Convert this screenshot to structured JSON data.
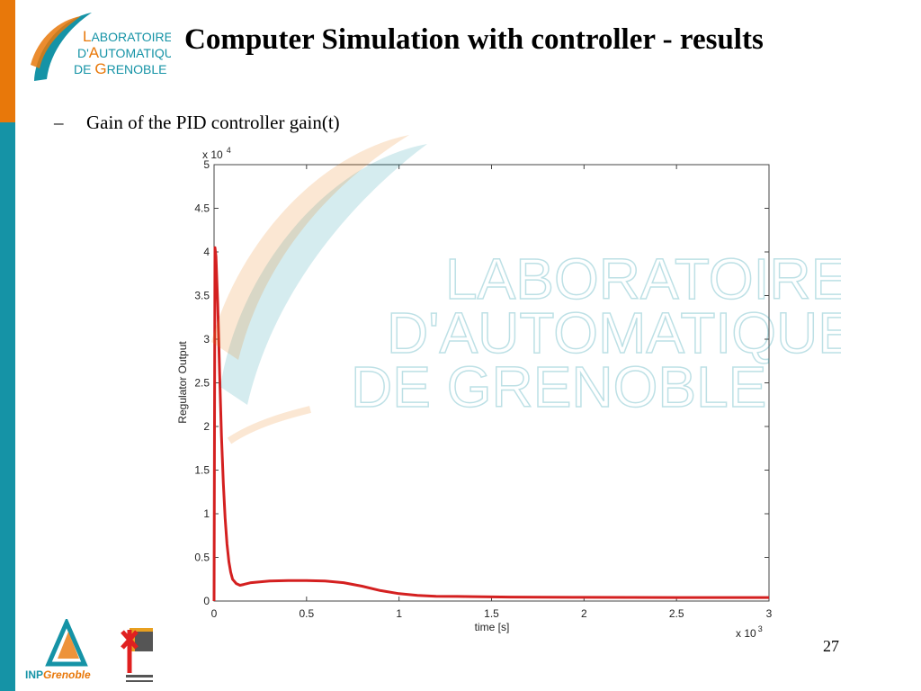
{
  "slide": {
    "title": "Computer Simulation with controller - results",
    "bullet_marker": "–",
    "bullet_text": "Gain of the PID controller gain(t)",
    "page_number": "27"
  },
  "logo": {
    "line1_cap": "L",
    "line1_rest": "ABORATOIRE",
    "line2_pre": "D'",
    "line2_cap": "A",
    "line2_rest": "UTOMATIQUE",
    "line3_pre": "DE ",
    "line3_cap": "G",
    "line3_rest": "RENOBLE"
  },
  "bottom_logo": {
    "text1": "INP",
    "text2": "Grenoble"
  },
  "colors": {
    "orange": "#e8780a",
    "teal": "#1593a6",
    "series": "#d42020"
  },
  "chart_data": {
    "type": "line",
    "title": "",
    "xlabel": "time [s]",
    "ylabel": "Regulator Output",
    "x_multiplier": "x 10",
    "x_multiplier_exp": "3",
    "y_multiplier": "x 10",
    "y_multiplier_exp": "4",
    "xlim": [
      0,
      3
    ],
    "ylim": [
      0,
      5
    ],
    "xticks": [
      0,
      0.5,
      1,
      1.5,
      2,
      2.5,
      3
    ],
    "xtick_labels": [
      "0",
      "0.5",
      "1",
      "1.5",
      "2",
      "2.5",
      "3"
    ],
    "yticks": [
      0,
      0.5,
      1,
      1.5,
      2,
      2.5,
      3,
      3.5,
      4,
      4.5,
      5
    ],
    "ytick_labels": [
      "0",
      "0.5",
      "1",
      "1.5",
      "2",
      "2.5",
      "3",
      "3.5",
      "4",
      "4.5",
      "5"
    ],
    "grid": false,
    "series": [
      {
        "x": [
          0,
          0.005,
          0.01,
          0.02,
          0.03,
          0.04,
          0.05,
          0.06,
          0.07,
          0.08,
          0.09,
          0.1,
          0.12,
          0.14,
          0.16,
          0.2,
          0.3,
          0.4,
          0.5,
          0.6,
          0.7,
          0.8,
          0.9,
          1.0,
          1.1,
          1.2,
          1.4,
          1.6,
          2.0,
          2.5,
          3.0
        ],
        "y": [
          0,
          4.05,
          3.95,
          3.4,
          2.6,
          1.9,
          1.35,
          0.95,
          0.65,
          0.45,
          0.33,
          0.25,
          0.2,
          0.18,
          0.19,
          0.21,
          0.23,
          0.235,
          0.235,
          0.23,
          0.21,
          0.17,
          0.12,
          0.085,
          0.065,
          0.055,
          0.05,
          0.045,
          0.042,
          0.04,
          0.04
        ]
      }
    ]
  }
}
